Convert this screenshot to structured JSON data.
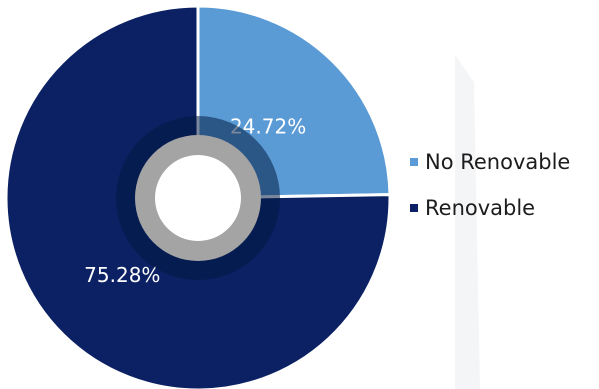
{
  "chart_data": {
    "type": "pie",
    "categories": [
      "No Renovable",
      "Renovable"
    ],
    "values": [
      24.72,
      75.28
    ],
    "data_labels": [
      "24.72%",
      "75.28%"
    ],
    "colors": [
      "#5b9bd5",
      "#0b2163"
    ],
    "legend": {
      "placement": "right",
      "entries": [
        "No Renovable",
        "Renovable"
      ]
    },
    "start_angle": 0,
    "direction": "clockwise"
  }
}
